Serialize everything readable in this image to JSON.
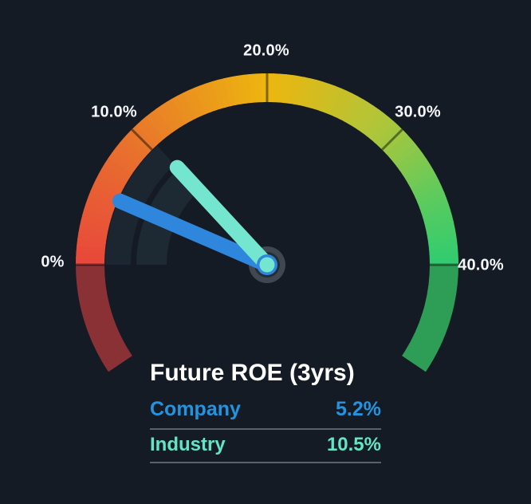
{
  "background_color": "#141B24",
  "chart_data": {
    "type": "gauge",
    "title": "Future ROE (3yrs)",
    "unit": "%",
    "min": 0,
    "max": 40,
    "scale_sweep_deg": 180,
    "out_of_range_extension_deg": 34,
    "ticks": [
      {
        "value": 0,
        "label": "0%"
      },
      {
        "value": 10,
        "label": "10.0%"
      },
      {
        "value": 20,
        "label": "20.0%"
      },
      {
        "value": 30,
        "label": "30.0%"
      },
      {
        "value": 40,
        "label": "40.0%"
      }
    ],
    "series": [
      {
        "name": "Company",
        "value": 5.2,
        "display": "5.2%",
        "color": "#2E87DC"
      },
      {
        "name": "Industry",
        "value": 10.5,
        "display": "10.5%",
        "color": "#74E6D0"
      }
    ],
    "gradient_stops": [
      {
        "t": 0.0,
        "color": "#E8473B"
      },
      {
        "t": 0.22,
        "color": "#E8702E"
      },
      {
        "t": 0.5,
        "color": "#EDB60F"
      },
      {
        "t": 0.72,
        "color": "#AEC63A"
      },
      {
        "t": 0.88,
        "color": "#5BCB5E"
      },
      {
        "t": 1.0,
        "color": "#2FCC70"
      }
    ],
    "colors": {
      "under_range_arc": "#8A3136",
      "over_range_arc": "#2E9E57",
      "tick_divider": "rgba(0,0,0,0.45)",
      "trail_bands": [
        "#1B2631",
        "#1D2A33"
      ],
      "hub_outer": "#3F4750",
      "hub_inner": "#262C34",
      "tick_label_color": "#F5F7FA"
    }
  },
  "panel": {
    "title": "Future ROE (3yrs)",
    "title_color": "#FFFFFF",
    "divider_color": "#59616B",
    "rows": [
      {
        "label": "Company",
        "value": "5.2%",
        "color": "#2393DF"
      },
      {
        "label": "Industry",
        "value": "10.5%",
        "color": "#63E5C5"
      }
    ]
  }
}
